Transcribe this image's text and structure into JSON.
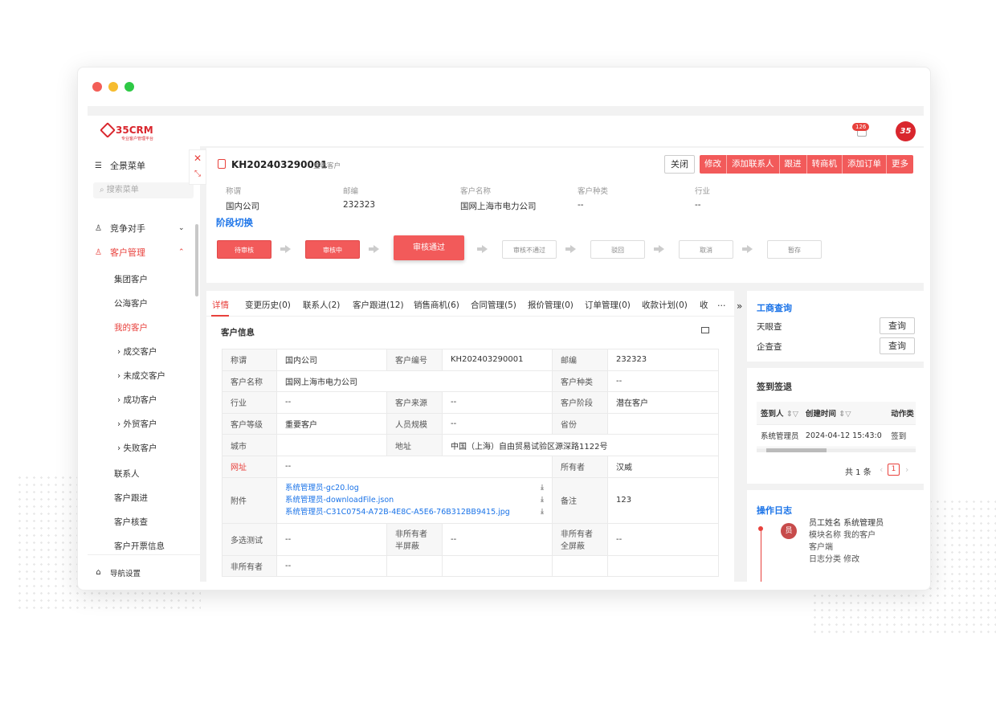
{
  "app": {
    "logo_text": "35CRM",
    "logo_sub": "专业客户管理平台",
    "notif_count": "126",
    "avatar_text": "35"
  },
  "sidebar": {
    "all_menu": "全景菜单",
    "search_placeholder": "搜索菜单",
    "competitor": "竞争对手",
    "customer_mgmt": "客户管理",
    "sub": [
      "集团客户",
      "公海客户",
      "我的客户"
    ],
    "sub2": [
      "成交客户",
      "未成交客户",
      "成功客户",
      "外贸客户",
      "失败客户"
    ],
    "more": [
      "联系人",
      "客户跟进",
      "客户核查",
      "客户开票信息"
    ],
    "nav_settings": "导航设置"
  },
  "record": {
    "id": "KH202403290001",
    "view_label": "查看客户"
  },
  "actions": {
    "close": "关闭",
    "group": [
      "修改",
      "添加联系人",
      "跟进",
      "转商机",
      "添加订单",
      "更多"
    ]
  },
  "summary": [
    {
      "label": "称谓",
      "value": "国内公司"
    },
    {
      "label": "邮编",
      "value": "232323"
    },
    {
      "label": "客户名称",
      "value": "国网上海市电力公司"
    },
    {
      "label": "客户种类",
      "value": "--"
    },
    {
      "label": "行业",
      "value": "--"
    }
  ],
  "stage_switch": "阶段切换",
  "stages": [
    "待审核",
    "审核中",
    "审核通过",
    "审核不通过",
    "驳回",
    "取消",
    "暂存"
  ],
  "tabs": [
    "详情",
    "变更历史(0)",
    "联系人(2)",
    "客户跟进(12)",
    "销售商机(6)",
    "合同管理(5)",
    "报价管理(0)",
    "订单管理(0)",
    "收款计划(0)",
    "收"
  ],
  "section_title": "客户信息",
  "info": {
    "r1": [
      "称谓",
      "国内公司",
      "客户编号",
      "KH202403290001",
      "邮编",
      "232323"
    ],
    "r2": [
      "客户名称",
      "国网上海市电力公司",
      "客户种类",
      "--"
    ],
    "r3": [
      "行业",
      "--",
      "客户来源",
      "--",
      "客户阶段",
      "潜在客户"
    ],
    "r4": [
      "客户等级",
      "重要客户",
      "人员规模",
      "--",
      "省份",
      ""
    ],
    "r5": [
      "城市",
      "",
      "地址",
      "中国（上海）自由贸易试验区源深路1122号"
    ],
    "r6": [
      "网址",
      "--",
      "所有者",
      "汉威"
    ],
    "r7_key": "附件",
    "attachments": [
      "系统管理员-gc20.log",
      "系统管理员-downloadFile.json",
      "系统管理员-C31C0754-A72B-4E8C-A5E6-76B312BB9415.jpg"
    ],
    "r7_note_key": "备注",
    "r7_note": "123",
    "r8": [
      "多选测试",
      "--",
      "非所有者半屏蔽",
      "--",
      "非所有者全屏蔽",
      "--"
    ],
    "r9": [
      "非所有者",
      "--"
    ]
  },
  "biz": {
    "title": "工商查询",
    "rows": [
      {
        "label": "天眼查",
        "btn": "查询"
      },
      {
        "label": "企查查",
        "btn": "查询"
      }
    ]
  },
  "checkin": {
    "title": "签到签退",
    "headers": [
      "签到人",
      "创建时间",
      "动作类"
    ],
    "row": [
      "系统管理员",
      "2024-04-12 15:43:0",
      "签到"
    ],
    "total": "共 1 条",
    "page": "1"
  },
  "oplog": {
    "title": "操作日志",
    "avatar": "员",
    "lines": [
      "员工姓名 系统管理员",
      "模块名称  我的客户",
      "客户端",
      "日志分类  修改"
    ]
  }
}
